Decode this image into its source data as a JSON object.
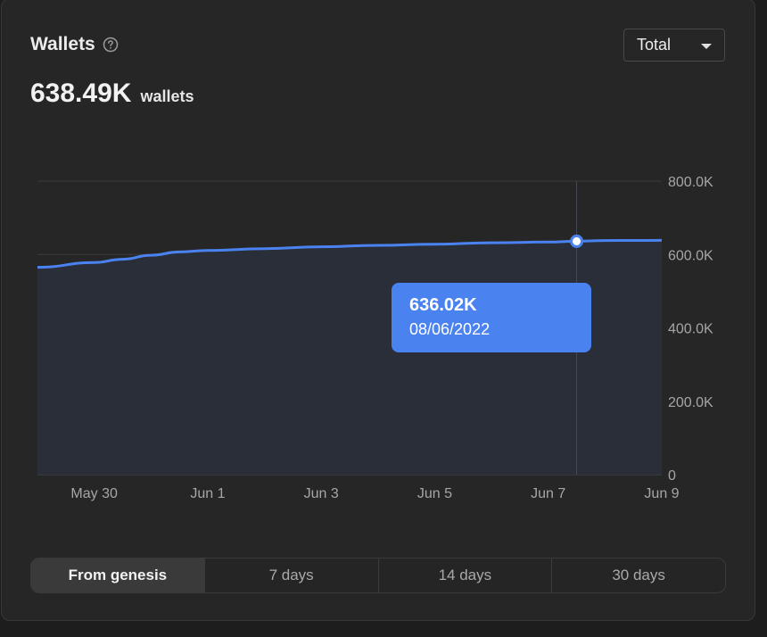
{
  "header": {
    "title": "Wallets",
    "metric_value": "638.49K",
    "metric_unit": "wallets"
  },
  "select": {
    "value": "Total"
  },
  "tooltip": {
    "value": "636.02K",
    "date": "08/06/2022"
  },
  "ranges": [
    {
      "label": "From genesis",
      "active": true
    },
    {
      "label": "7 days",
      "active": false
    },
    {
      "label": "14 days",
      "active": false
    },
    {
      "label": "30 days",
      "active": false
    }
  ],
  "colors": {
    "line": "#4a82f0",
    "area": "#2a2e38",
    "accent": "#4a82f0"
  },
  "chart_data": {
    "type": "area",
    "title": "Wallets",
    "xlabel": "",
    "ylabel": "",
    "x_tick_labels": [
      "May 30",
      "Jun 1",
      "Jun 3",
      "Jun 5",
      "Jun 7",
      "Jun 9"
    ],
    "x_tick_days": [
      0,
      2,
      4,
      6,
      8,
      10
    ],
    "y_tick_labels": [
      "0",
      "200.0K",
      "400.0K",
      "600.0K",
      "800.0K"
    ],
    "y_tick_values": [
      0,
      200000,
      400000,
      600000,
      800000
    ],
    "xlim": [
      -1,
      10
    ],
    "ylim": [
      0,
      800000
    ],
    "series": [
      {
        "name": "Total",
        "x": [
          -1,
          0,
          0.5,
          1,
          1.5,
          2,
          3,
          4,
          5,
          6,
          7,
          8,
          8.5,
          9,
          9.5,
          10
        ],
        "values": [
          565000,
          578000,
          587000,
          598000,
          607000,
          611000,
          616000,
          621000,
          625000,
          628000,
          632000,
          634000,
          636020,
          638000,
          638300,
          638490
        ]
      }
    ],
    "highlight": {
      "x": 8.5,
      "value": 636020,
      "label": "636.02K",
      "date": "08/06/2022"
    }
  }
}
